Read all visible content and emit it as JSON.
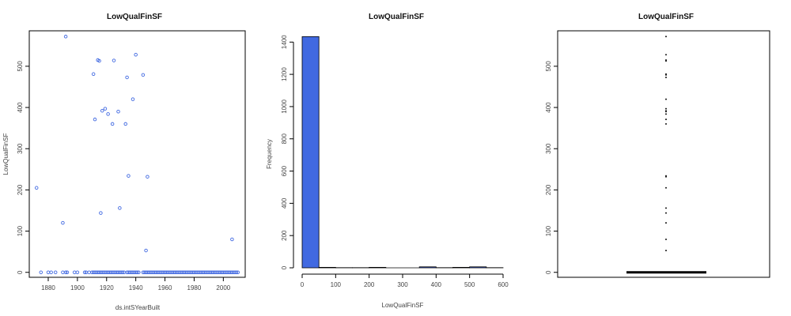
{
  "chart_data": [
    {
      "type": "scatter",
      "title": "LowQualFinSF",
      "xlabel": "ds.intSYearBuilt",
      "ylabel": "LowQualFinSF",
      "xlim": [
        1867,
        2015
      ],
      "ylim": [
        -12,
        586
      ],
      "xticks": [
        "1880",
        "1900",
        "1920",
        "1940",
        "1960",
        "1980",
        "2000"
      ],
      "yticks": [
        "0",
        "100",
        "200",
        "300",
        "400",
        "500"
      ],
      "points": [
        {
          "x": 1872,
          "y": 205
        },
        {
          "x": 1890,
          "y": 120
        },
        {
          "x": 1892,
          "y": 572
        },
        {
          "x": 1911,
          "y": 481
        },
        {
          "x": 1912,
          "y": 371
        },
        {
          "x": 1914,
          "y": 515
        },
        {
          "x": 1915,
          "y": 513
        },
        {
          "x": 1916,
          "y": 144
        },
        {
          "x": 1917,
          "y": 392
        },
        {
          "x": 1919,
          "y": 397
        },
        {
          "x": 1921,
          "y": 384
        },
        {
          "x": 1924,
          "y": 360
        },
        {
          "x": 1925,
          "y": 514
        },
        {
          "x": 1928,
          "y": 390
        },
        {
          "x": 1929,
          "y": 156
        },
        {
          "x": 1933,
          "y": 360
        },
        {
          "x": 1934,
          "y": 473
        },
        {
          "x": 1935,
          "y": 234
        },
        {
          "x": 1938,
          "y": 420
        },
        {
          "x": 1940,
          "y": 528
        },
        {
          "x": 1945,
          "y": 479
        },
        {
          "x": 1947,
          "y": 53
        },
        {
          "x": 1948,
          "y": 232
        },
        {
          "x": 2006,
          "y": 80
        },
        {
          "x": 1875,
          "y": 0
        },
        {
          "x": 1880,
          "y": 0
        },
        {
          "x": 1882,
          "y": 0
        },
        {
          "x": 1885,
          "y": 0
        },
        {
          "x": 1890,
          "y": 0
        },
        {
          "x": 1892,
          "y": 0
        },
        {
          "x": 1893,
          "y": 0
        },
        {
          "x": 1898,
          "y": 0
        },
        {
          "x": 1900,
          "y": 0
        },
        {
          "x": 1905,
          "y": 0
        },
        {
          "x": 1906,
          "y": 0
        },
        {
          "x": 1908,
          "y": 0
        },
        {
          "x": 1910,
          "y": 0
        },
        {
          "x": 1911,
          "y": 0
        },
        {
          "x": 1912,
          "y": 0
        },
        {
          "x": 1913,
          "y": 0
        },
        {
          "x": 1914,
          "y": 0
        },
        {
          "x": 1915,
          "y": 0
        },
        {
          "x": 1916,
          "y": 0
        },
        {
          "x": 1917,
          "y": 0
        },
        {
          "x": 1918,
          "y": 0
        },
        {
          "x": 1919,
          "y": 0
        },
        {
          "x": 1920,
          "y": 0
        },
        {
          "x": 1921,
          "y": 0
        },
        {
          "x": 1922,
          "y": 0
        },
        {
          "x": 1923,
          "y": 0
        },
        {
          "x": 1924,
          "y": 0
        },
        {
          "x": 1925,
          "y": 0
        },
        {
          "x": 1926,
          "y": 0
        },
        {
          "x": 1927,
          "y": 0
        },
        {
          "x": 1928,
          "y": 0
        },
        {
          "x": 1929,
          "y": 0
        },
        {
          "x": 1930,
          "y": 0
        },
        {
          "x": 1931,
          "y": 0
        },
        {
          "x": 1932,
          "y": 0
        },
        {
          "x": 1934,
          "y": 0
        },
        {
          "x": 1935,
          "y": 0
        },
        {
          "x": 1936,
          "y": 0
        },
        {
          "x": 1937,
          "y": 0
        },
        {
          "x": 1938,
          "y": 0
        },
        {
          "x": 1939,
          "y": 0
        },
        {
          "x": 1940,
          "y": 0
        },
        {
          "x": 1941,
          "y": 0
        },
        {
          "x": 1942,
          "y": 0
        },
        {
          "x": 1945,
          "y": 0
        },
        {
          "x": 1946,
          "y": 0
        },
        {
          "x": 1947,
          "y": 0
        },
        {
          "x": 1948,
          "y": 0
        },
        {
          "x": 1949,
          "y": 0
        },
        {
          "x": 1950,
          "y": 0
        },
        {
          "x": 1951,
          "y": 0
        },
        {
          "x": 1952,
          "y": 0
        },
        {
          "x": 1953,
          "y": 0
        },
        {
          "x": 1954,
          "y": 0
        },
        {
          "x": 1955,
          "y": 0
        },
        {
          "x": 1956,
          "y": 0
        },
        {
          "x": 1957,
          "y": 0
        },
        {
          "x": 1958,
          "y": 0
        },
        {
          "x": 1959,
          "y": 0
        },
        {
          "x": 1960,
          "y": 0
        },
        {
          "x": 1961,
          "y": 0
        },
        {
          "x": 1962,
          "y": 0
        },
        {
          "x": 1963,
          "y": 0
        },
        {
          "x": 1964,
          "y": 0
        },
        {
          "x": 1965,
          "y": 0
        },
        {
          "x": 1966,
          "y": 0
        },
        {
          "x": 1967,
          "y": 0
        },
        {
          "x": 1968,
          "y": 0
        },
        {
          "x": 1969,
          "y": 0
        },
        {
          "x": 1970,
          "y": 0
        },
        {
          "x": 1971,
          "y": 0
        },
        {
          "x": 1972,
          "y": 0
        },
        {
          "x": 1973,
          "y": 0
        },
        {
          "x": 1974,
          "y": 0
        },
        {
          "x": 1975,
          "y": 0
        },
        {
          "x": 1976,
          "y": 0
        },
        {
          "x": 1977,
          "y": 0
        },
        {
          "x": 1978,
          "y": 0
        },
        {
          "x": 1979,
          "y": 0
        },
        {
          "x": 1980,
          "y": 0
        },
        {
          "x": 1981,
          "y": 0
        },
        {
          "x": 1982,
          "y": 0
        },
        {
          "x": 1983,
          "y": 0
        },
        {
          "x": 1984,
          "y": 0
        },
        {
          "x": 1985,
          "y": 0
        },
        {
          "x": 1986,
          "y": 0
        },
        {
          "x": 1987,
          "y": 0
        },
        {
          "x": 1988,
          "y": 0
        },
        {
          "x": 1989,
          "y": 0
        },
        {
          "x": 1990,
          "y": 0
        },
        {
          "x": 1991,
          "y": 0
        },
        {
          "x": 1992,
          "y": 0
        },
        {
          "x": 1993,
          "y": 0
        },
        {
          "x": 1994,
          "y": 0
        },
        {
          "x": 1995,
          "y": 0
        },
        {
          "x": 1996,
          "y": 0
        },
        {
          "x": 1997,
          "y": 0
        },
        {
          "x": 1998,
          "y": 0
        },
        {
          "x": 1999,
          "y": 0
        },
        {
          "x": 2000,
          "y": 0
        },
        {
          "x": 2001,
          "y": 0
        },
        {
          "x": 2002,
          "y": 0
        },
        {
          "x": 2003,
          "y": 0
        },
        {
          "x": 2004,
          "y": 0
        },
        {
          "x": 2005,
          "y": 0
        },
        {
          "x": 2006,
          "y": 0
        },
        {
          "x": 2007,
          "y": 0
        },
        {
          "x": 2008,
          "y": 0
        },
        {
          "x": 2009,
          "y": 0
        },
        {
          "x": 2010,
          "y": 0
        }
      ],
      "point_color": "#4169e1"
    },
    {
      "type": "bar",
      "title": "LowQualFinSF",
      "xlabel": "LowQualFinSF",
      "ylabel": "Frequency",
      "xlim": [
        0,
        600
      ],
      "ylim": [
        0,
        1470
      ],
      "xticks": [
        "0",
        "100",
        "200",
        "300",
        "400",
        "500",
        "600"
      ],
      "yticks": [
        "0",
        "200",
        "400",
        "600",
        "800",
        "1000",
        "1200",
        "1400"
      ],
      "bins": [
        {
          "from": 0,
          "to": 50,
          "count": 1434
        },
        {
          "from": 50,
          "to": 100,
          "count": 3
        },
        {
          "from": 100,
          "to": 150,
          "count": 1
        },
        {
          "from": 150,
          "to": 200,
          "count": 1
        },
        {
          "from": 200,
          "to": 250,
          "count": 3
        },
        {
          "from": 250,
          "to": 300,
          "count": 0
        },
        {
          "from": 300,
          "to": 350,
          "count": 0
        },
        {
          "from": 350,
          "to": 400,
          "count": 6
        },
        {
          "from": 400,
          "to": 450,
          "count": 1
        },
        {
          "from": 450,
          "to": 500,
          "count": 3
        },
        {
          "from": 500,
          "to": 550,
          "count": 6
        },
        {
          "from": 550,
          "to": 600,
          "count": 1
        }
      ],
      "bar_color": "#4169e1"
    },
    {
      "type": "scatter",
      "title": "LowQualFinSF",
      "ylim": [
        -12,
        586
      ],
      "yticks": [
        "0",
        "100",
        "200",
        "300",
        "400",
        "500"
      ],
      "box_median": 0,
      "outliers": [
        572,
        528,
        515,
        513,
        481,
        479,
        473,
        420,
        397,
        392,
        390,
        384,
        371,
        360,
        234,
        232,
        205,
        156,
        144,
        120,
        80,
        53
      ],
      "point_color": "#111111"
    }
  ]
}
